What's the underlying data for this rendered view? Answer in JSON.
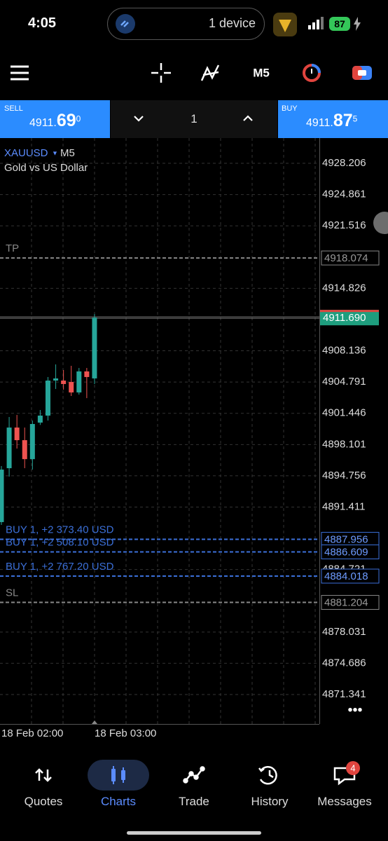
{
  "status_bar": {
    "time": "4:05",
    "device": "1 device",
    "battery": "87"
  },
  "toolbar": {
    "timeframe": "M5"
  },
  "trade_bar": {
    "sell": {
      "label": "SELL",
      "main": "4911.",
      "big": "69",
      "sup": "0"
    },
    "volume": "1",
    "buy": {
      "label": "BUY",
      "main": "4911.",
      "big": "87",
      "sup": "5"
    }
  },
  "chart": {
    "symbol": "XAUUSD",
    "timeframe": "M5",
    "description": "Gold vs US Dollar",
    "ylim": [
      4868.19,
      4930.91
    ],
    "yticks": [
      4928.206,
      4924.861,
      4921.516,
      4914.826,
      4908.136,
      4904.791,
      4901.446,
      4898.101,
      4894.756,
      4891.411,
      4884.721,
      4878.031,
      4874.686,
      4871.341
    ],
    "xlabels": [
      "18 Feb 02:00",
      "18 Feb 03:00"
    ],
    "candles": {
      "open": [
        4889.8,
        4895.57,
        4899.92,
        4898.57,
        4896.54,
        4900.45,
        4901.2,
        4904.95,
        4904.95,
        4904.8,
        4903.68,
        4905.93,
        4905.18
      ],
      "high": [
        4895.8,
        4901.05,
        4901.27,
        4899.92,
        4900.67,
        4901.8,
        4905.33,
        4906.68,
        4906.08,
        4906.53,
        4906.3,
        4906.3,
        4912.07
      ],
      "low": [
        4889.5,
        4894.67,
        4897.67,
        4895.57,
        4895.42,
        4900.2,
        4900.67,
        4904.05,
        4903.98,
        4903.3,
        4903.45,
        4903.07,
        4904.58
      ],
      "close": [
        4895.42,
        4899.92,
        4898.57,
        4896.54,
        4900.3,
        4901.2,
        4904.95,
        4905.18,
        4904.58,
        4903.68,
        4905.93,
        4905.33,
        4911.69
      ]
    },
    "tp": {
      "label": "TP",
      "price": 4918.074
    },
    "sl": {
      "label": "SL",
      "price": 4881.204
    },
    "current": {
      "price": {
        "value": 4911.69,
        "label": "4911.690"
      }
    },
    "orders": [
      {
        "text": "BUY 1,  +2 373.40 USD",
        "price": 4887.956
      },
      {
        "text": "BUY 1,  +2 508.10 USD",
        "price": 4886.609
      },
      {
        "text": "BUY 1,  +2 767.20 USD",
        "price": 4884.018
      }
    ]
  },
  "nav": {
    "items": [
      "Quotes",
      "Charts",
      "Trade",
      "History",
      "Messages"
    ],
    "badge": "4"
  }
}
